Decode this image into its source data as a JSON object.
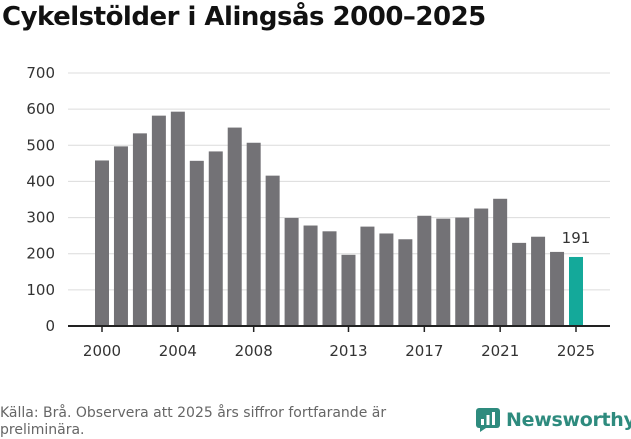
{
  "title": "Cykelstölder i Alingsås 2000–2025",
  "source": "Källa: Brå. Observera att 2025 års siffror fortfarande är preliminära.",
  "brand": {
    "name": "Newsworthy",
    "color": "#2e8b7e"
  },
  "colors": {
    "bar": "#737276",
    "highlight": "#14a99a",
    "grid": "#dcdcdc",
    "axis": "#222222"
  },
  "chart_data": {
    "type": "bar",
    "title": "Cykelstölder i Alingsås 2000–2025",
    "xlabel": "",
    "ylabel": "",
    "ylim": [
      0,
      700
    ],
    "yticks": [
      0,
      100,
      200,
      300,
      400,
      500,
      600,
      700
    ],
    "categories": [
      "2000",
      "2001",
      "2002",
      "2003",
      "2004",
      "2005",
      "2006",
      "2007",
      "2008",
      "2009",
      "2010",
      "2011",
      "2012",
      "2013",
      "2014",
      "2015",
      "2016",
      "2017",
      "2018",
      "2019",
      "2020",
      "2021",
      "2022",
      "2023",
      "2024",
      "2025"
    ],
    "values": [
      458,
      497,
      533,
      582,
      593,
      457,
      483,
      549,
      507,
      416,
      299,
      278,
      262,
      197,
      275,
      256,
      240,
      305,
      297,
      300,
      325,
      352,
      230,
      247,
      205,
      191
    ],
    "xticks": [
      "2000",
      "2004",
      "2008",
      "2013",
      "2017",
      "2021",
      "2025"
    ],
    "highlight": {
      "category": "2025",
      "label": "191"
    }
  }
}
